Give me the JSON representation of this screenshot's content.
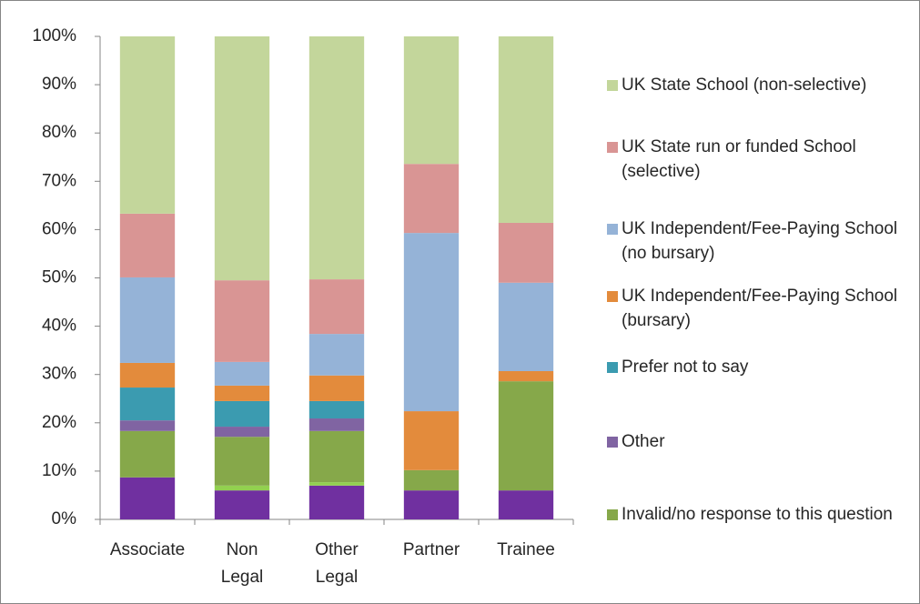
{
  "chart_data": {
    "type": "stacked_bar",
    "categories": [
      "Associate",
      [
        "Non",
        "Legal"
      ],
      [
        "Other",
        "Legal"
      ],
      "Partner",
      "Trainee"
    ],
    "series": [
      {
        "color": "#7030a0",
        "values": [
          8.7,
          6.0,
          7.0,
          6.0,
          6.0
        ]
      },
      {
        "color": "#92d050",
        "values": [
          0,
          1.0,
          0.7,
          0,
          0
        ]
      },
      {
        "name": "Invalid/no response to this question",
        "color": "#86a84a",
        "values": [
          9.6,
          10.1,
          10.6,
          4.2,
          22.6
        ]
      },
      {
        "name": "Other",
        "color": "#8064a2",
        "values": [
          2.2,
          2.1,
          2.6,
          0,
          0
        ]
      },
      {
        "name": "Prefer not to say",
        "color": "#3b9bb0",
        "values": [
          6.8,
          5.3,
          3.6,
          0,
          0
        ]
      },
      {
        "name": "UK Independent/Fee-Paying School (bursary)",
        "color": "#e38b3c",
        "values": [
          5.1,
          3.2,
          5.3,
          12.2,
          2.1
        ]
      },
      {
        "name": "UK Independent/Fee-Paying School (no bursary)",
        "color": "#95b3d7",
        "values": [
          17.7,
          4.9,
          8.6,
          36.9,
          18.3
        ]
      },
      {
        "name": "UK State run or funded School (selective)",
        "color": "#d99594",
        "values": [
          13.2,
          16.9,
          11.3,
          14.3,
          12.4
        ]
      },
      {
        "name": "UK State School (non-selective)",
        "color": "#c3d69b",
        "values": [
          36.7,
          50.5,
          50.3,
          26.4,
          38.6
        ]
      }
    ],
    "ylim": [
      0,
      100
    ],
    "yticks": [
      {
        "value": 0,
        "label": "0%"
      },
      {
        "value": 10,
        "label": "10%"
      },
      {
        "value": 20,
        "label": "20%"
      },
      {
        "value": 30,
        "label": "30%"
      },
      {
        "value": 40,
        "label": "40%"
      },
      {
        "value": 50,
        "label": "50%"
      },
      {
        "value": 60,
        "label": "60%"
      },
      {
        "value": 70,
        "label": "70%"
      },
      {
        "value": 80,
        "label": "80%"
      },
      {
        "value": 90,
        "label": "90%"
      },
      {
        "value": 100,
        "label": "100%"
      }
    ],
    "legend": "right"
  }
}
